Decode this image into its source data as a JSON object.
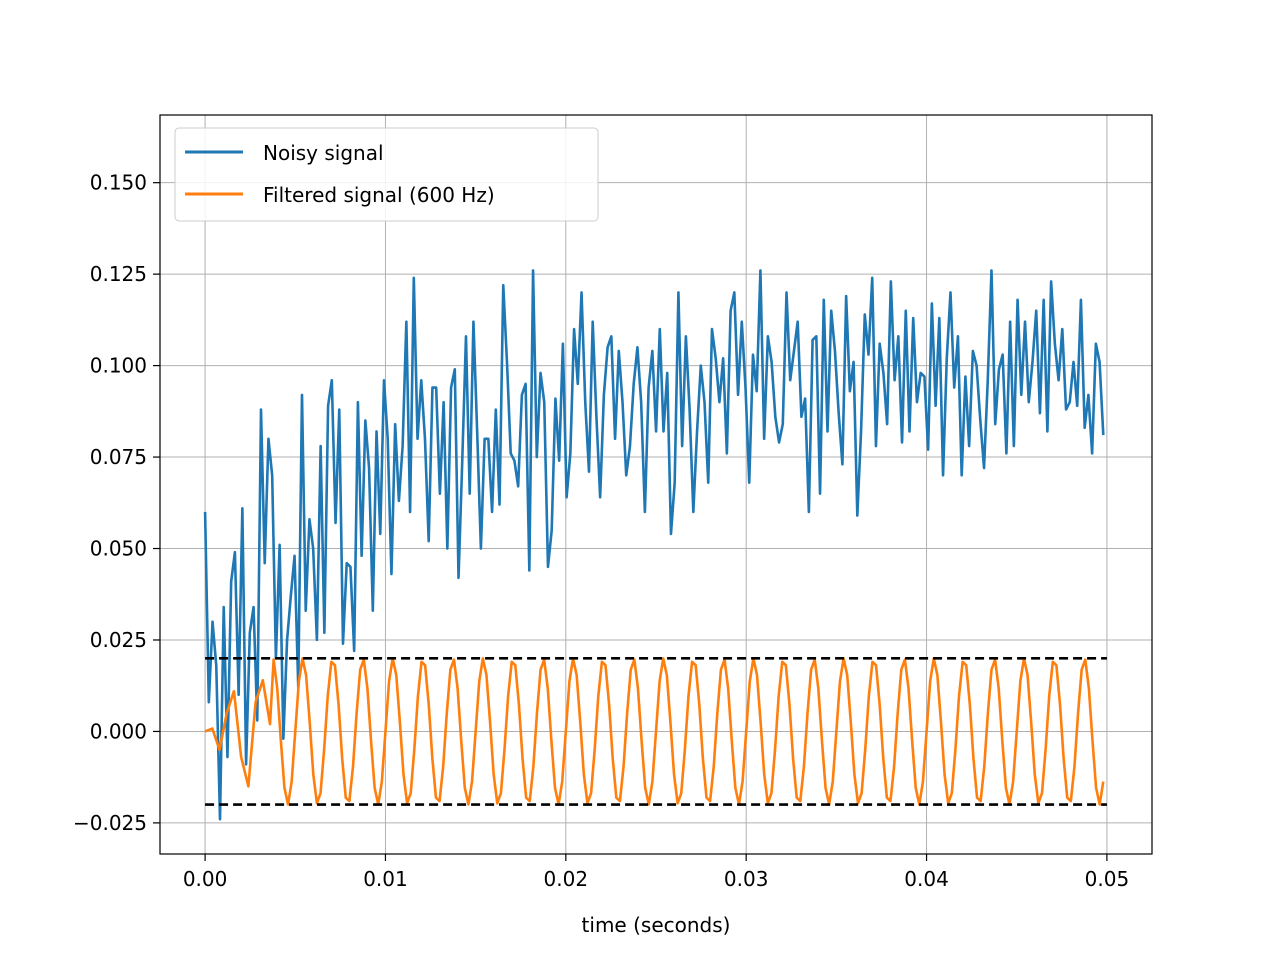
{
  "chart_data": {
    "type": "line",
    "title": "",
    "xlabel": "time (seconds)",
    "ylabel": "",
    "xlim": [
      -0.0025,
      0.0525
    ],
    "ylim": [
      -0.0335,
      0.1685
    ],
    "xticks": [
      0.0,
      0.01,
      0.02,
      0.03,
      0.04,
      0.05
    ],
    "xtick_labels": [
      "0.00",
      "0.01",
      "0.02",
      "0.03",
      "0.04",
      "0.05"
    ],
    "yticks": [
      -0.025,
      0.0,
      0.025,
      0.05,
      0.075,
      0.1,
      0.125,
      0.15
    ],
    "ytick_labels": [
      "−0.025",
      "0.000",
      "0.025",
      "0.050",
      "0.075",
      "0.100",
      "0.125",
      "0.150"
    ],
    "grid": true,
    "legend_position": "top-left",
    "colors": {
      "noisy": "#1f77b4",
      "filtered": "#ff7f0e",
      "reference": "#000000"
    },
    "series": [
      {
        "name": "Noisy signal",
        "x_range": [
          0.0,
          0.0498
        ],
        "points": 250,
        "values": [
          0.06,
          0.008,
          0.03,
          0.018,
          -0.024,
          0.034,
          -0.007,
          0.041,
          0.049,
          0.01,
          0.061,
          -0.009,
          0.027,
          0.034,
          0.003,
          0.088,
          0.046,
          0.08,
          0.07,
          0.02,
          0.051,
          -0.002,
          0.025,
          0.037,
          0.048,
          0.012,
          0.092,
          0.033,
          0.058,
          0.05,
          0.025,
          0.078,
          0.027,
          0.089,
          0.096,
          0.057,
          0.088,
          0.024,
          0.046,
          0.045,
          0.022,
          0.09,
          0.048,
          0.085,
          0.072,
          0.033,
          0.082,
          0.054,
          0.096,
          0.08,
          0.043,
          0.084,
          0.063,
          0.078,
          0.112,
          0.06,
          0.124,
          0.08,
          0.096,
          0.08,
          0.052,
          0.094,
          0.094,
          0.065,
          0.09,
          0.05,
          0.094,
          0.099,
          0.042,
          0.074,
          0.108,
          0.065,
          0.112,
          0.082,
          0.05,
          0.08,
          0.08,
          0.06,
          0.088,
          0.062,
          0.122,
          0.101,
          0.076,
          0.074,
          0.067,
          0.092,
          0.095,
          0.044,
          0.126,
          0.075,
          0.098,
          0.09,
          0.045,
          0.055,
          0.091,
          0.074,
          0.106,
          0.064,
          0.076,
          0.11,
          0.095,
          0.12,
          0.09,
          0.071,
          0.112,
          0.086,
          0.064,
          0.092,
          0.105,
          0.108,
          0.08,
          0.104,
          0.09,
          0.07,
          0.078,
          0.095,
          0.105,
          0.09,
          0.06,
          0.094,
          0.104,
          0.082,
          0.11,
          0.082,
          0.098,
          0.054,
          0.068,
          0.12,
          0.078,
          0.108,
          0.088,
          0.06,
          0.082,
          0.1,
          0.09,
          0.068,
          0.11,
          0.102,
          0.09,
          0.102,
          0.076,
          0.115,
          0.12,
          0.092,
          0.112,
          0.094,
          0.068,
          0.103,
          0.093,
          0.126,
          0.08,
          0.108,
          0.101,
          0.086,
          0.079,
          0.084,
          0.12,
          0.096,
          0.104,
          0.112,
          0.086,
          0.091,
          0.06,
          0.107,
          0.108,
          0.065,
          0.118,
          0.082,
          0.115,
          0.104,
          0.087,
          0.073,
          0.119,
          0.093,
          0.101,
          0.059,
          0.082,
          0.114,
          0.103,
          0.124,
          0.078,
          0.106,
          0.098,
          0.084,
          0.123,
          0.096,
          0.108,
          0.079,
          0.115,
          0.082,
          0.113,
          0.09,
          0.098,
          0.097,
          0.077,
          0.117,
          0.089,
          0.113,
          0.07,
          0.102,
          0.12,
          0.094,
          0.108,
          0.07,
          0.097,
          0.078,
          0.104,
          0.1,
          0.085,
          0.072,
          0.096,
          0.126,
          0.084,
          0.099,
          0.103,
          0.076,
          0.112,
          0.078,
          0.118,
          0.092,
          0.112,
          0.09,
          0.101,
          0.115,
          0.087,
          0.118,
          0.082,
          0.123,
          0.106,
          0.096,
          0.11,
          0.088,
          0.09,
          0.101,
          0.089,
          0.118,
          0.083,
          0.092,
          0.076,
          0.106,
          0.101,
          0.081
        ]
      },
      {
        "name": "Filtered signal (600 Hz)",
        "model": "sine",
        "amplitude": 0.02,
        "frequency_hz": 600,
        "x_range": [
          0.0,
          0.0498
        ],
        "points": 250,
        "startup_transient": [
          [
            0.0,
            0.0
          ],
          [
            0.0004,
            0.0008
          ],
          [
            0.0008,
            -0.005
          ],
          [
            0.0012,
            0.005
          ],
          [
            0.0016,
            0.011
          ],
          [
            0.002,
            -0.007
          ],
          [
            0.0024,
            -0.015
          ],
          [
            0.0028,
            0.008
          ],
          [
            0.0032,
            0.014
          ],
          [
            0.0036,
            0.002
          ]
        ]
      },
      {
        "name": "",
        "model": "reference",
        "x_range": [
          0.0,
          0.05
        ],
        "levels": [
          0.02,
          -0.02
        ]
      }
    ]
  },
  "legend": {
    "items": [
      {
        "label": "Noisy signal"
      },
      {
        "label": "Filtered signal (600 Hz)"
      }
    ]
  }
}
